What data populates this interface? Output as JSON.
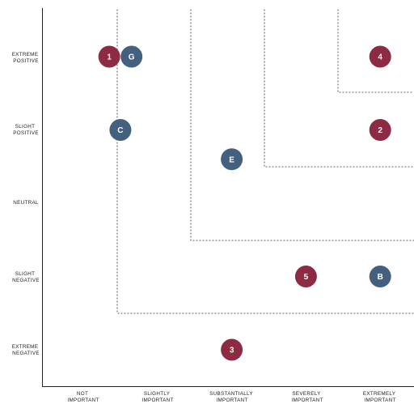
{
  "y_axis": {
    "labels": [
      [
        "EXTREME",
        "POSITIVE"
      ],
      [
        "SLIGHT",
        "POSITIVE"
      ],
      [
        "NEUTRAL"
      ],
      [
        "SLIGHT",
        "NEGATIVE"
      ],
      [
        "EXTREME",
        "NEGATIVE"
      ]
    ]
  },
  "x_axis": {
    "labels": [
      [
        "NOT",
        "IMPORTANT"
      ],
      [
        "SLIGHTLY",
        "IMPORTANT"
      ],
      [
        "SUBSTANTIALLY",
        "IMPORTANT"
      ],
      [
        "SEVERELY",
        "IMPORTANT"
      ],
      [
        "EXTREMELY",
        "IMPORTANT"
      ]
    ]
  },
  "colors": {
    "red": "#8c2b43",
    "blue": "#44607f",
    "axis": "#222222",
    "dotted": "#555555"
  },
  "markers": [
    {
      "label": "1",
      "color": "red",
      "importance": 1.35,
      "sentiment": 5.0
    },
    {
      "label": "G",
      "color": "blue",
      "importance": 1.65,
      "sentiment": 5.0
    },
    {
      "label": "4",
      "color": "red",
      "importance": 5.0,
      "sentiment": 5.0
    },
    {
      "label": "C",
      "color": "blue",
      "importance": 1.5,
      "sentiment": 4.0
    },
    {
      "label": "2",
      "color": "red",
      "importance": 5.0,
      "sentiment": 4.0
    },
    {
      "label": "E",
      "color": "blue",
      "importance": 3.0,
      "sentiment": 3.6
    },
    {
      "label": "5",
      "color": "red",
      "importance": 4.0,
      "sentiment": 2.0
    },
    {
      "label": "B",
      "color": "blue",
      "importance": 5.0,
      "sentiment": 2.0
    },
    {
      "label": "3",
      "color": "red",
      "importance": 3.0,
      "sentiment": 1.0
    }
  ]
}
